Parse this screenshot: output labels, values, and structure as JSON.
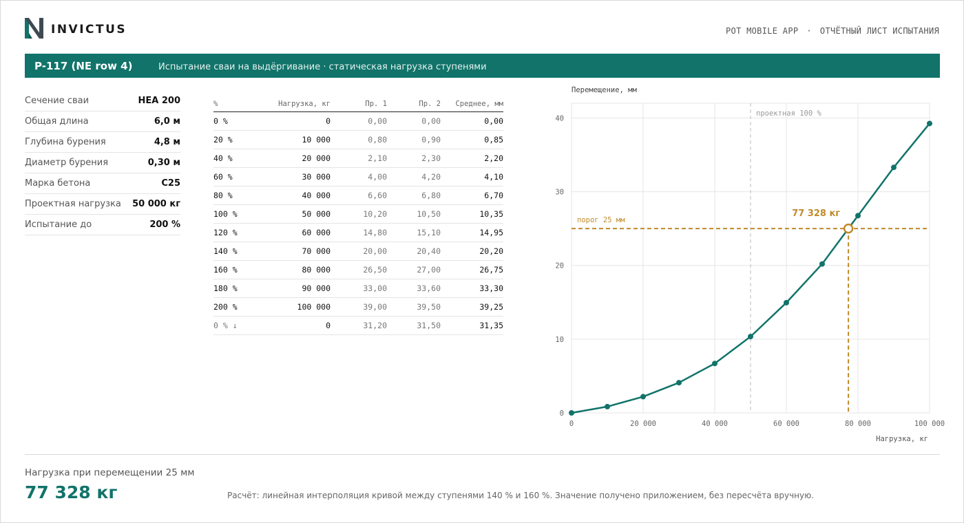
{
  "header": {
    "brand": "INVICTUS",
    "app_name": "POT MOBILE APP",
    "separator": "·",
    "doc_type": "ОТЧЁТНЫЙ ЛИСТ ИСПЫТАНИЯ"
  },
  "band": {
    "code": "P-117 (NE row 4)",
    "subtitle": "Испытание сваи на выдёргивание · статическая нагрузка ступенями"
  },
  "specs": [
    {
      "label": "Сечение сваи",
      "value": "HEA 200"
    },
    {
      "label": "Общая длина",
      "value": "6,0 м"
    },
    {
      "label": "Глубина бурения",
      "value": "4,8 м"
    },
    {
      "label": "Диаметр бурения",
      "value": "0,30 м"
    },
    {
      "label": "Марка бетона",
      "value": "C25"
    },
    {
      "label": "Проектная нагрузка",
      "value": "50 000 кг"
    },
    {
      "label": "Испытание до",
      "value": "200 %"
    }
  ],
  "table": {
    "headers": [
      "%",
      "Нагрузка, кг",
      "Пр. 1",
      "Пр. 2",
      "Среднее, мм"
    ],
    "rows": [
      [
        "0 %",
        "0",
        "0,00",
        "0,00",
        "0,00"
      ],
      [
        "20 %",
        "10 000",
        "0,80",
        "0,90",
        "0,85"
      ],
      [
        "40 %",
        "20 000",
        "2,10",
        "2,30",
        "2,20"
      ],
      [
        "60 %",
        "30 000",
        "4,00",
        "4,20",
        "4,10"
      ],
      [
        "80 %",
        "40 000",
        "6,60",
        "6,80",
        "6,70"
      ],
      [
        "100 %",
        "50 000",
        "10,20",
        "10,50",
        "10,35"
      ],
      [
        "120 %",
        "60 000",
        "14,80",
        "15,10",
        "14,95"
      ],
      [
        "140 %",
        "70 000",
        "20,00",
        "20,40",
        "20,20"
      ],
      [
        "160 %",
        "80 000",
        "26,50",
        "27,00",
        "26,75"
      ],
      [
        "180 %",
        "90 000",
        "33,00",
        "33,60",
        "33,30"
      ],
      [
        "200 %",
        "100 000",
        "39,00",
        "39,50",
        "39,25"
      ],
      [
        "0 % ↓",
        "0",
        "31,20",
        "31,50",
        "31,35"
      ]
    ]
  },
  "chart_data": {
    "type": "line",
    "ylabel": "Перемещение, мм",
    "xlabel": "Нагрузка, кг",
    "xlim": [
      0,
      100000
    ],
    "ylim": [
      0,
      42
    ],
    "xticks": [
      0,
      20000,
      40000,
      60000,
      80000,
      100000
    ],
    "xtick_labels": [
      "0",
      "20 000",
      "40 000",
      "60 000",
      "80 000",
      "100 000"
    ],
    "yticks": [
      0,
      10,
      20,
      30,
      40
    ],
    "ytick_labels": [
      "0",
      "10",
      "20",
      "30",
      "40"
    ],
    "grid": true,
    "series": [
      {
        "x": [
          0,
          10000,
          20000,
          30000,
          40000,
          50000,
          60000,
          70000,
          80000,
          90000,
          100000
        ],
        "y": [
          0,
          0.85,
          2.2,
          4.1,
          6.7,
          10.35,
          14.95,
          20.2,
          26.75,
          33.3,
          39.25
        ],
        "color": "#11736a"
      }
    ],
    "design_line": {
      "x": 50000,
      "label": "проектная 100 %"
    },
    "threshold": {
      "y": 25,
      "label": "порог 25 мм"
    },
    "marker": {
      "x": 77328,
      "y": 25,
      "label": "77 328 кг"
    },
    "colors": {
      "series": "#11736a",
      "threshold": "#c08a2a",
      "design": "#bbbbbb",
      "grid": "#e6e6e6"
    }
  },
  "footer": {
    "label": "Нагрузка при перемещении 25 мм",
    "value": "77 328 кг",
    "note": "Расчёт: линейная интерполяция кривой между ступенями 140 % и 160 %. Значение получено приложением, без пересчёта вручную."
  },
  "colors": {
    "accent": "#11736a",
    "highlight": "#c08a2a"
  }
}
